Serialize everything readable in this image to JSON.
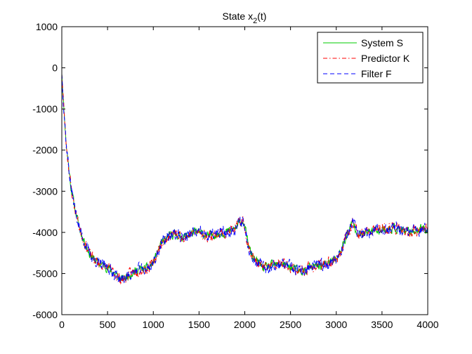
{
  "chart_data": {
    "type": "line",
    "title_main": "State x",
    "title_sub": "2",
    "title_tail": "(t)",
    "xlim": [
      0,
      4000
    ],
    "ylim": [
      -6000,
      1000
    ],
    "xticks": [
      0,
      500,
      1000,
      1500,
      2000,
      2500,
      3000,
      3500,
      4000
    ],
    "yticks": [
      -6000,
      -5000,
      -4000,
      -3000,
      -2000,
      -1000,
      0,
      1000
    ],
    "grid": false,
    "legend_position": "top-right",
    "series": [
      {
        "name": "System S",
        "color": "#00cc00",
        "style": "solid",
        "noise_amplitude": 90,
        "noise_seed": 11
      },
      {
        "name": "Predictor K",
        "color": "#ff0000",
        "style": "dash-dot",
        "noise_amplitude": 110,
        "noise_seed": 23
      },
      {
        "name": "Filter F",
        "color": "#0000ff",
        "style": "dashed",
        "noise_amplitude": 120,
        "noise_seed": 37
      }
    ],
    "trend": {
      "x": [
        0,
        20,
        50,
        100,
        150,
        200,
        250,
        300,
        350,
        400,
        450,
        500,
        550,
        600,
        650,
        700,
        750,
        800,
        850,
        900,
        950,
        1000,
        1050,
        1100,
        1150,
        1200,
        1250,
        1300,
        1350,
        1400,
        1450,
        1500,
        1550,
        1600,
        1650,
        1700,
        1750,
        1800,
        1850,
        1900,
        1950,
        1980,
        2000,
        2050,
        2100,
        2150,
        2200,
        2250,
        2300,
        2350,
        2400,
        2450,
        2500,
        2550,
        2600,
        2650,
        2700,
        2750,
        2800,
        2850,
        2900,
        2950,
        3000,
        3050,
        3100,
        3150,
        3180,
        3200,
        3250,
        3300,
        3350,
        3400,
        3450,
        3500,
        3550,
        3600,
        3650,
        3700,
        3750,
        3800,
        3850,
        3900,
        3950,
        4000
      ],
      "y": [
        -100,
        -900,
        -1900,
        -2900,
        -3500,
        -3950,
        -4250,
        -4500,
        -4650,
        -4750,
        -4800,
        -4850,
        -4950,
        -5050,
        -5150,
        -5100,
        -5000,
        -4950,
        -4900,
        -4900,
        -4850,
        -4750,
        -4450,
        -4250,
        -4150,
        -4050,
        -4050,
        -4100,
        -4100,
        -4050,
        -4000,
        -4000,
        -4050,
        -4100,
        -4050,
        -4050,
        -4000,
        -4000,
        -3950,
        -3900,
        -3750,
        -3700,
        -3900,
        -4400,
        -4650,
        -4750,
        -4850,
        -4850,
        -4800,
        -4800,
        -4750,
        -4800,
        -4850,
        -4900,
        -4950,
        -4950,
        -4850,
        -4850,
        -4800,
        -4800,
        -4750,
        -4700,
        -4650,
        -4450,
        -4150,
        -3900,
        -3750,
        -3850,
        -4050,
        -4050,
        -4000,
        -3950,
        -3950,
        -3900,
        -3950,
        -3900,
        -3900,
        -3950,
        -4000,
        -4000,
        -3950,
        -3950,
        -3900,
        -3950
      ]
    }
  }
}
